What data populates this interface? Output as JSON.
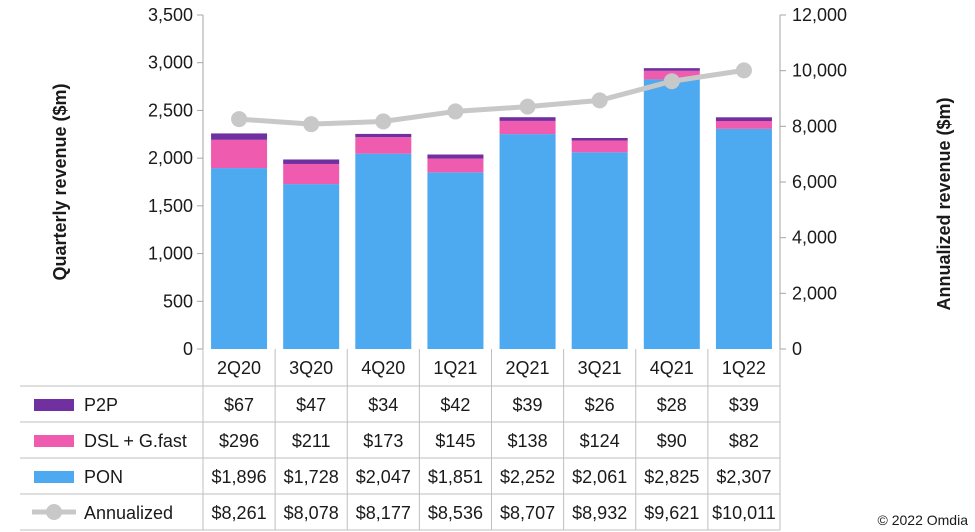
{
  "chart_data": {
    "type": "bar",
    "stacked": true,
    "categories": [
      "2Q20",
      "3Q20",
      "4Q20",
      "1Q21",
      "2Q21",
      "3Q21",
      "4Q21",
      "1Q22"
    ],
    "series": [
      {
        "name": "PON",
        "kind": "bar",
        "axis": "left",
        "color": "#4DA9F0",
        "values": [
          1896,
          1728,
          2047,
          1851,
          2252,
          2061,
          2825,
          2307
        ],
        "labels": [
          "$1,896",
          "$1,728",
          "$2,047",
          "$1,851",
          "$2,252",
          "$2,061",
          "$2,825",
          "$2,307"
        ]
      },
      {
        "name": "DSL + G.fast",
        "kind": "bar",
        "axis": "left",
        "color": "#EE5BAF",
        "values": [
          296,
          211,
          173,
          145,
          138,
          124,
          90,
          82
        ],
        "labels": [
          "$296",
          "$211",
          "$173",
          "$145",
          "$138",
          "$124",
          "$90",
          "$82"
        ]
      },
      {
        "name": "P2P",
        "kind": "bar",
        "axis": "left",
        "color": "#7030A0",
        "values": [
          67,
          47,
          34,
          42,
          39,
          26,
          28,
          39
        ],
        "labels": [
          "$67",
          "$47",
          "$34",
          "$42",
          "$39",
          "$26",
          "$28",
          "$39"
        ]
      },
      {
        "name": "Annualized",
        "kind": "line",
        "axis": "right",
        "color": "#C8C8C8",
        "values": [
          8261,
          8078,
          8177,
          8536,
          8707,
          8932,
          9621,
          10011
        ],
        "labels": [
          "$8,261",
          "$8,078",
          "$8,177",
          "$8,536",
          "$8,707",
          "$8,932",
          "$9,621",
          "$10,011"
        ]
      }
    ],
    "table_row_order": [
      "P2P",
      "DSL + G.fast",
      "PON",
      "Annualized"
    ],
    "ylabel": "Quarterly revenue ($m)",
    "y2label": "Annualized revenue ($m)",
    "ylim": [
      0,
      3500
    ],
    "y2lim": [
      0,
      12000
    ],
    "yticks": [
      0,
      500,
      1000,
      1500,
      2000,
      2500,
      3000,
      3500
    ],
    "ytick_labels": [
      "0",
      "500",
      "1,000",
      "1,500",
      "2,000",
      "2,500",
      "3,000",
      "3,500"
    ],
    "y2ticks": [
      0,
      2000,
      4000,
      6000,
      8000,
      10000,
      12000
    ],
    "y2tick_labels": [
      "0",
      "2,000",
      "4,000",
      "6,000",
      "8,000",
      "10,000",
      "12,000"
    ],
    "legend": "data-table"
  },
  "copyright": "© 2022 Omdia"
}
